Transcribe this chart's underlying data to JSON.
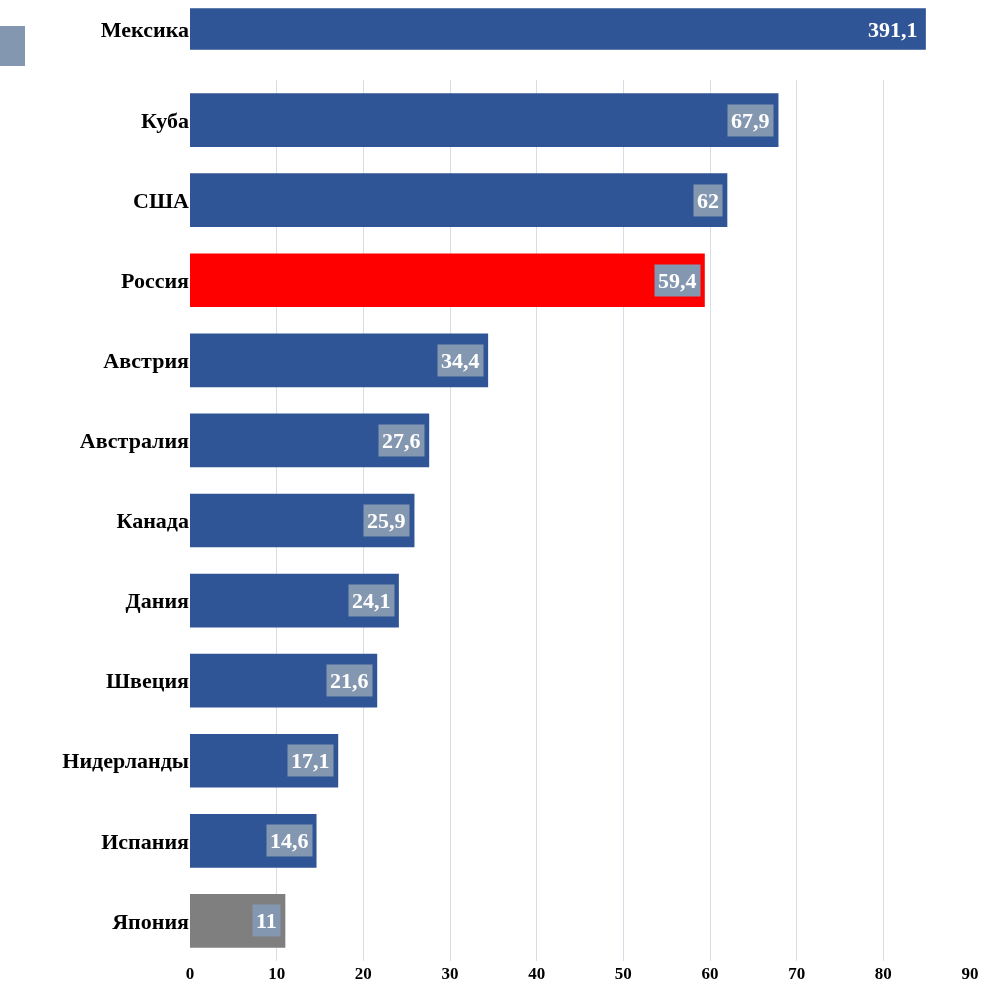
{
  "chart_data": [
    {
      "type": "bar",
      "orientation": "horizontal",
      "categories": [
        "Мексика"
      ],
      "values": [
        391.1
      ],
      "colors": [
        "#2f5597"
      ],
      "value_labels": [
        "391,1"
      ],
      "tick_labels": "y",
      "grid": false
    },
    {
      "type": "bar",
      "orientation": "horizontal",
      "categories": [
        "Куба",
        "США",
        "Россия",
        "Австрия",
        "Австралия",
        "Канада",
        "Дания",
        "Швеция",
        "Нидерланды",
        "Испания",
        "Япония"
      ],
      "values": [
        67.9,
        62,
        59.4,
        34.4,
        27.6,
        25.9,
        24.1,
        21.6,
        17.1,
        14.6,
        11
      ],
      "colors": [
        "#2f5597",
        "#2f5597",
        "#ff0000",
        "#2f5597",
        "#2f5597",
        "#2f5597",
        "#2f5597",
        "#2f5597",
        "#2f5597",
        "#2f5597",
        "#7f7f7f"
      ],
      "value_labels": [
        "67,9",
        "62",
        "59,4",
        "34,4",
        "27,6",
        "25,9",
        "24,1",
        "21,6",
        "17,1",
        "14,6",
        "11"
      ],
      "xlim": [
        0,
        90
      ],
      "xticks": [
        0,
        10,
        20,
        30,
        40,
        50,
        60,
        70,
        80,
        90
      ],
      "grid": "x"
    }
  ]
}
